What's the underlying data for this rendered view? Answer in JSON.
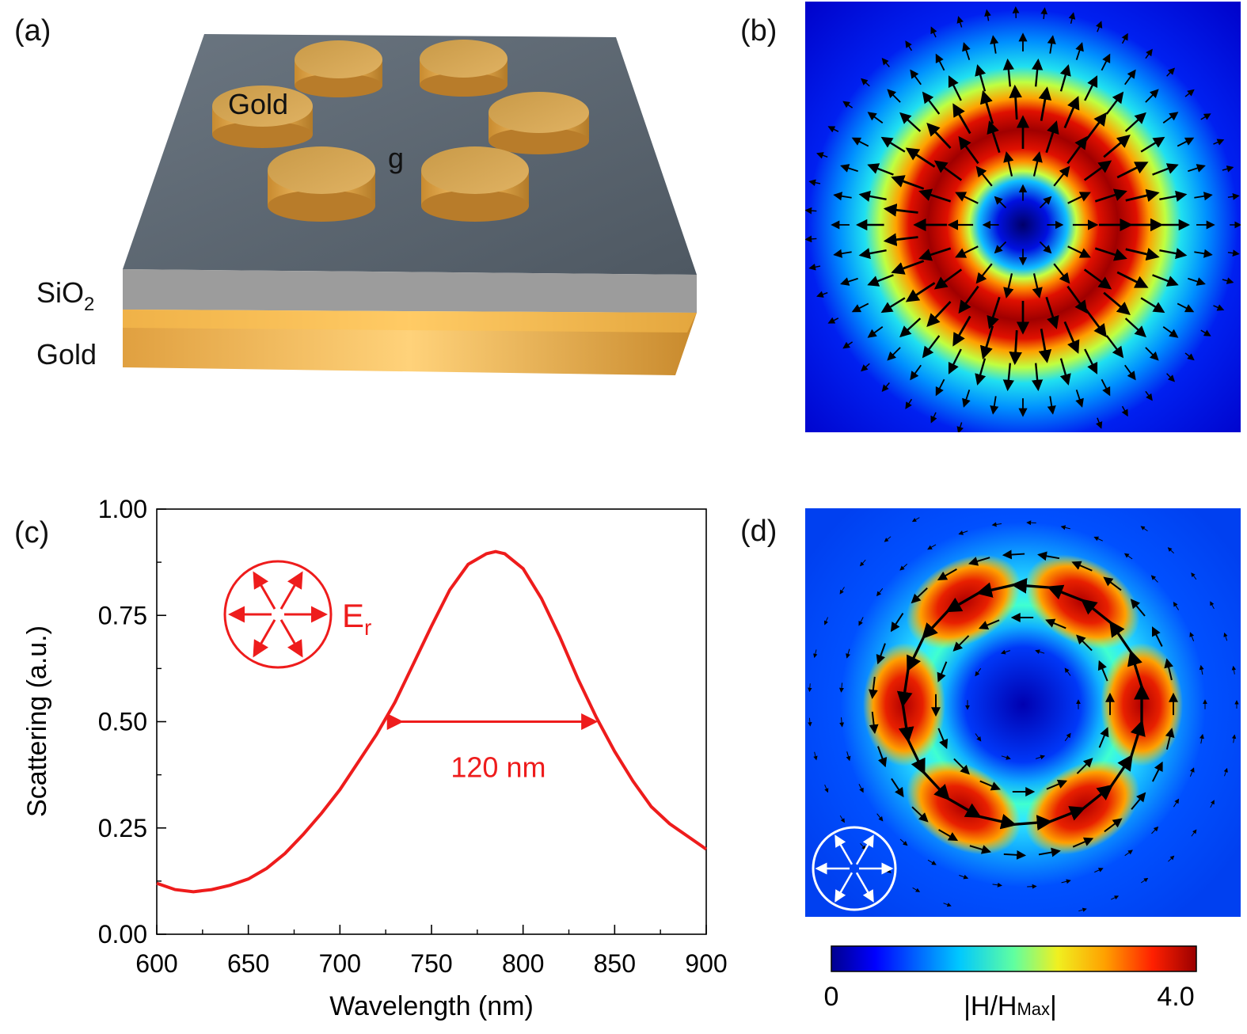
{
  "panels": {
    "a": {
      "label": "(a)",
      "gold_disk_label": "Gold",
      "gap_label": "g",
      "sio2_label": "SiO",
      "sio2_subscript": "2",
      "gold_layer_label": "Gold",
      "colors": {
        "substrate_top": "#5a6470",
        "sio2": "#9a9a9a",
        "gold": "#f4b43d",
        "disk_top": "#d9a54f"
      }
    },
    "b": {
      "label": "(b)"
    },
    "c": {
      "label": "(c)"
    },
    "d": {
      "label": "(d)"
    }
  },
  "chart_data": {
    "type": "line",
    "xlabel": "Wavelength (nm)",
    "ylabel": "Scattering (a.u.)",
    "xlim": [
      600,
      900
    ],
    "ylim": [
      0.0,
      1.0
    ],
    "xticks": [
      600,
      650,
      700,
      750,
      800,
      850,
      900
    ],
    "yticks": [
      0.0,
      0.25,
      0.5,
      0.75,
      1.0
    ],
    "ytick_labels": [
      "0.00",
      "0.25",
      "0.50",
      "0.75",
      "1.00"
    ],
    "series": [
      {
        "name": "Scattering",
        "color": "#ee1c1c",
        "x": [
          600,
          610,
          620,
          630,
          640,
          650,
          660,
          670,
          680,
          690,
          700,
          710,
          720,
          730,
          740,
          750,
          760,
          770,
          780,
          785,
          790,
          800,
          810,
          820,
          830,
          840,
          850,
          860,
          870,
          880,
          890,
          900
        ],
        "y": [
          0.12,
          0.105,
          0.1,
          0.105,
          0.115,
          0.13,
          0.155,
          0.19,
          0.235,
          0.285,
          0.34,
          0.405,
          0.47,
          0.545,
          0.635,
          0.725,
          0.81,
          0.87,
          0.895,
          0.9,
          0.895,
          0.86,
          0.79,
          0.7,
          0.6,
          0.51,
          0.43,
          0.36,
          0.3,
          0.26,
          0.23,
          0.2
        ]
      }
    ],
    "annotations": {
      "fwhm_label": "120 nm",
      "fwhm_range": [
        730,
        843
      ],
      "fwhm_y": 0.5,
      "polarization_label": "E",
      "polarization_subscript": "r"
    }
  },
  "colorbar": {
    "min_label": "0",
    "max_label": "4.0",
    "title": "|H/H",
    "title_subscript": "Max",
    "title_end": "|",
    "colors": [
      "#00008f",
      "#0000ff",
      "#00a0ff",
      "#20e0f0",
      "#80ff80",
      "#e8f020",
      "#ffa000",
      "#ff3000",
      "#a00000"
    ]
  },
  "icons": [
    "radial-polarization-icon"
  ]
}
